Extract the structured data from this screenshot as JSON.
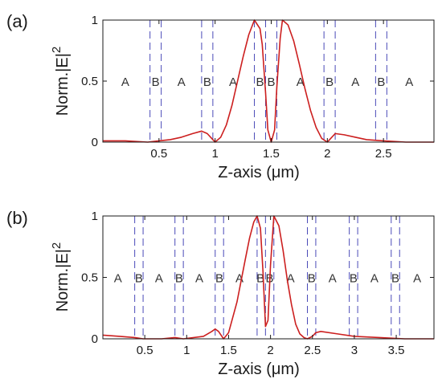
{
  "colors": {
    "curve": "#cc1f1f",
    "dashes": "#4a4ab8",
    "axes": "#1a1a1a"
  },
  "chart_data": [
    {
      "type": "line",
      "panel_label": "(a)",
      "title": "",
      "xlabel": "Z-axis (μm)",
      "ylabel": "Norm.|E|²",
      "ylabel_main": "Norm.|E|",
      "ylabel_sup": "2",
      "xlim": [
        0,
        2.95
      ],
      "ylim": [
        0,
        1
      ],
      "xticks": [
        0.5,
        1,
        1.5,
        2,
        2.5
      ],
      "xtick_labels": [
        "0.5",
        "1",
        "1.5",
        "2",
        "2.5"
      ],
      "yticks": [
        0,
        0.5,
        1
      ],
      "ytick_labels": [
        "0",
        "0.5",
        "1"
      ],
      "grid": false,
      "layer_boundaries": [
        0.42,
        0.52,
        0.88,
        0.98,
        1.35,
        1.45,
        1.55,
        1.97,
        2.07,
        2.43,
        2.53
      ],
      "layer_labels": [
        {
          "text": "A",
          "x": 0.2
        },
        {
          "text": "B",
          "x": 0.47
        },
        {
          "text": "A",
          "x": 0.7
        },
        {
          "text": "B",
          "x": 0.93
        },
        {
          "text": "A",
          "x": 1.16
        },
        {
          "text": "B",
          "x": 1.4
        },
        {
          "text": "B",
          "x": 1.5
        },
        {
          "text": "A",
          "x": 1.76
        },
        {
          "text": "B",
          "x": 2.02
        },
        {
          "text": "A",
          "x": 2.25
        },
        {
          "text": "B",
          "x": 2.48
        },
        {
          "text": "A",
          "x": 2.73
        }
      ],
      "series": [
        {
          "x": [
            0,
            0.2,
            0.4,
            0.5,
            0.6,
            0.7,
            0.8,
            0.88,
            0.93,
            0.98,
            1.0,
            1.05,
            1.1,
            1.15,
            1.2,
            1.25,
            1.3,
            1.35,
            1.4,
            1.42,
            1.45,
            1.47,
            1.5,
            1.53,
            1.55,
            1.58,
            1.6,
            1.65,
            1.7,
            1.75,
            1.8,
            1.85,
            1.9,
            1.95,
            2.0,
            2.02,
            2.07,
            2.15,
            2.25,
            2.35,
            2.5,
            2.7,
            2.95
          ],
          "y": [
            0.01,
            0.01,
            0.0,
            0.01,
            0.02,
            0.04,
            0.07,
            0.09,
            0.07,
            0.02,
            0.0,
            0.04,
            0.14,
            0.3,
            0.5,
            0.7,
            0.88,
            1.0,
            0.93,
            0.8,
            0.4,
            0.1,
            0.0,
            0.1,
            0.45,
            0.85,
            1.0,
            0.96,
            0.83,
            0.64,
            0.44,
            0.26,
            0.12,
            0.03,
            0.0,
            0.02,
            0.07,
            0.06,
            0.04,
            0.02,
            0.01,
            0.0,
            0.0
          ]
        }
      ]
    },
    {
      "type": "line",
      "panel_label": "(b)",
      "title": "",
      "xlabel": "Z-axis (μm)",
      "ylabel": "Norm.|E|²",
      "ylabel_main": "Norm.|E|",
      "ylabel_sup": "2",
      "xlim": [
        0,
        3.95
      ],
      "ylim": [
        0,
        1
      ],
      "xticks": [
        0.5,
        1,
        1.5,
        2,
        2.5,
        3,
        3.5
      ],
      "xtick_labels": [
        "0.5",
        "1",
        "1.5",
        "2",
        "2.5",
        "3",
        "3.5"
      ],
      "yticks": [
        0,
        0.5,
        1
      ],
      "ytick_labels": [
        "0",
        "0.5",
        "1"
      ],
      "grid": false,
      "layer_boundaries": [
        0.38,
        0.48,
        0.86,
        0.96,
        1.34,
        1.44,
        1.84,
        1.94,
        2.04,
        2.44,
        2.54,
        2.94,
        3.04,
        3.44,
        3.54
      ],
      "layer_labels": [
        {
          "text": "A",
          "x": 0.18
        },
        {
          "text": "B",
          "x": 0.43
        },
        {
          "text": "A",
          "x": 0.67
        },
        {
          "text": "B",
          "x": 0.91
        },
        {
          "text": "A",
          "x": 1.15
        },
        {
          "text": "B",
          "x": 1.39
        },
        {
          "text": "A",
          "x": 1.63
        },
        {
          "text": "B",
          "x": 1.88
        },
        {
          "text": "B",
          "x": 1.99
        },
        {
          "text": "A",
          "x": 2.24
        },
        {
          "text": "B",
          "x": 2.49
        },
        {
          "text": "A",
          "x": 2.74
        },
        {
          "text": "B",
          "x": 2.99
        },
        {
          "text": "A",
          "x": 3.24
        },
        {
          "text": "B",
          "x": 3.49
        },
        {
          "text": "A",
          "x": 3.75
        }
      ],
      "series": [
        {
          "x": [
            0,
            0.2,
            0.38,
            0.48,
            0.7,
            0.86,
            0.96,
            1.2,
            1.3,
            1.34,
            1.38,
            1.44,
            1.5,
            1.6,
            1.7,
            1.75,
            1.8,
            1.84,
            1.88,
            1.91,
            1.94,
            1.97,
            2.0,
            2.04,
            2.1,
            2.15,
            2.2,
            2.25,
            2.3,
            2.35,
            2.4,
            2.44,
            2.5,
            2.54,
            2.6,
            2.8,
            3.0,
            3.3,
            3.6,
            3.95
          ],
          "y": [
            0.03,
            0.02,
            0.01,
            0.0,
            0.0,
            0.01,
            0.0,
            0.02,
            0.06,
            0.08,
            0.06,
            0.0,
            0.05,
            0.3,
            0.65,
            0.82,
            0.95,
            1.0,
            0.9,
            0.55,
            0.1,
            0.15,
            0.6,
            1.0,
            0.92,
            0.72,
            0.48,
            0.28,
            0.12,
            0.04,
            0.01,
            0.0,
            0.02,
            0.05,
            0.06,
            0.04,
            0.02,
            0.01,
            0.0,
            0.0
          ]
        }
      ]
    }
  ]
}
